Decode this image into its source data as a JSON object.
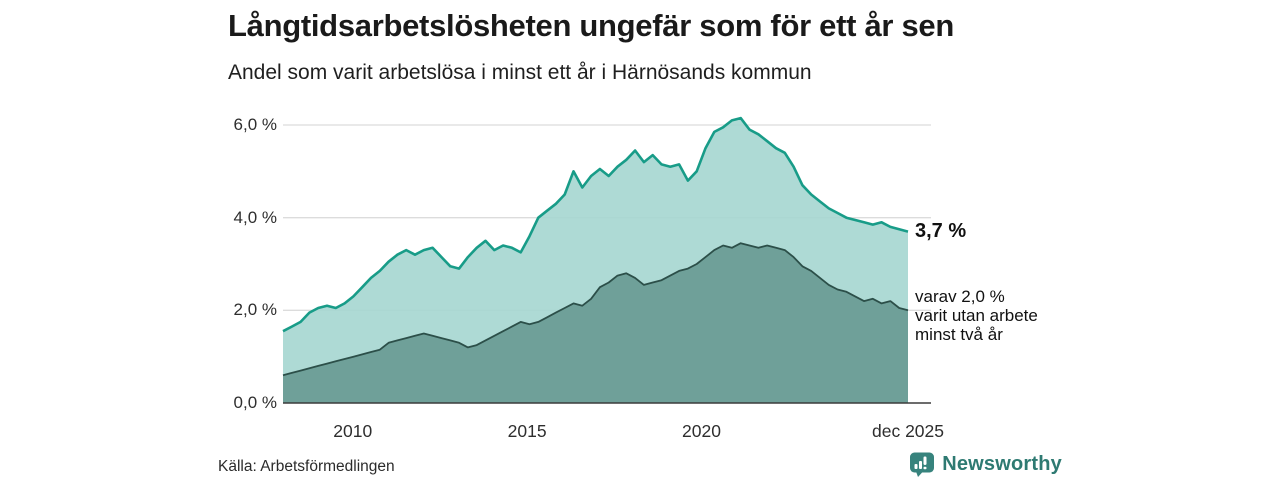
{
  "header": {
    "title": "Långtidsarbetslösheten ungefär som för ett år sen",
    "subtitle": "Andel som varit arbetslösa i minst ett år i Härnösands kommun"
  },
  "chart_data": {
    "type": "area",
    "title": "Långtidsarbetslösheten ungefär som för ett år sen",
    "subtitle": "Andel som varit arbetslösa i minst ett år i Härnösands kommun",
    "x_start": 2008.0,
    "x_end": 2025.92,
    "ylim": [
      0,
      6.5
    ],
    "grid": true,
    "legend_position": "none",
    "y_ticks": [
      {
        "label": "6,0 %",
        "value": 6
      },
      {
        "label": "4,0 %",
        "value": 4
      },
      {
        "label": "2,0 %",
        "value": 2
      },
      {
        "label": "0,0 %",
        "value": 0
      }
    ],
    "x_ticks": [
      {
        "label": "2010",
        "t": 2010
      },
      {
        "label": "2015",
        "t": 2015
      },
      {
        "label": "2020",
        "t": 2020
      },
      {
        "label": "dec 2025",
        "t": 2025.92
      }
    ],
    "series": [
      {
        "name": "arbetslösa minst ett år (totalt)",
        "end_label": "3,7 %",
        "line_color": "#189c88",
        "fill_color": "#a5d6d0",
        "fill_opacity": 0.9,
        "values": [
          1.55,
          1.65,
          1.75,
          1.95,
          2.05,
          2.1,
          2.05,
          2.15,
          2.3,
          2.5,
          2.7,
          2.85,
          3.05,
          3.2,
          3.3,
          3.2,
          3.3,
          3.35,
          3.15,
          2.95,
          2.9,
          3.15,
          3.35,
          3.5,
          3.3,
          3.4,
          3.35,
          3.25,
          3.6,
          4.0,
          4.15,
          4.3,
          4.5,
          5.0,
          4.65,
          4.9,
          5.05,
          4.9,
          5.1,
          5.25,
          5.45,
          5.2,
          5.35,
          5.15,
          5.1,
          5.15,
          4.8,
          5.0,
          5.5,
          5.85,
          5.95,
          6.1,
          6.15,
          5.9,
          5.8,
          5.65,
          5.5,
          5.4,
          5.1,
          4.7,
          4.5,
          4.35,
          4.2,
          4.1,
          4.0,
          3.95,
          3.9,
          3.85,
          3.9,
          3.8,
          3.75,
          3.7
        ]
      },
      {
        "name": "utan arbete minst två år",
        "end_label": "varav 2,0 % varit utan arbete minst två år",
        "line_color": "#2c4f49",
        "fill_color": "#6fa099",
        "fill_opacity": 1,
        "values": [
          0.6,
          0.65,
          0.7,
          0.75,
          0.8,
          0.85,
          0.9,
          0.95,
          1.0,
          1.05,
          1.1,
          1.15,
          1.3,
          1.35,
          1.4,
          1.45,
          1.5,
          1.45,
          1.4,
          1.35,
          1.3,
          1.2,
          1.25,
          1.35,
          1.45,
          1.55,
          1.65,
          1.75,
          1.7,
          1.75,
          1.85,
          1.95,
          2.05,
          2.15,
          2.1,
          2.25,
          2.5,
          2.6,
          2.75,
          2.8,
          2.7,
          2.55,
          2.6,
          2.65,
          2.75,
          2.85,
          2.9,
          3.0,
          3.15,
          3.3,
          3.4,
          3.35,
          3.45,
          3.4,
          3.35,
          3.4,
          3.35,
          3.3,
          3.15,
          2.95,
          2.85,
          2.7,
          2.55,
          2.45,
          2.4,
          2.3,
          2.2,
          2.25,
          2.15,
          2.2,
          2.05,
          2.0
        ]
      }
    ],
    "colors": {
      "gridline": "#dcdcdc",
      "axis_line": "#3c3c3c",
      "total_line": "#189c88",
      "total_fill": "#a5d6d0",
      "two_year_line": "#2c4f49",
      "two_year_fill": "#6fa099",
      "brand_teal": "#2e7a72",
      "logo_teal": "#37837d"
    }
  },
  "annotations": {
    "total_value": "3,7 %",
    "detail_lines": [
      "varav 2,0 %",
      "varit utan arbete",
      "minst två år"
    ]
  },
  "footer": {
    "source": "Källa: Arbetsförmedlingen",
    "brand": "Newsworthy"
  }
}
